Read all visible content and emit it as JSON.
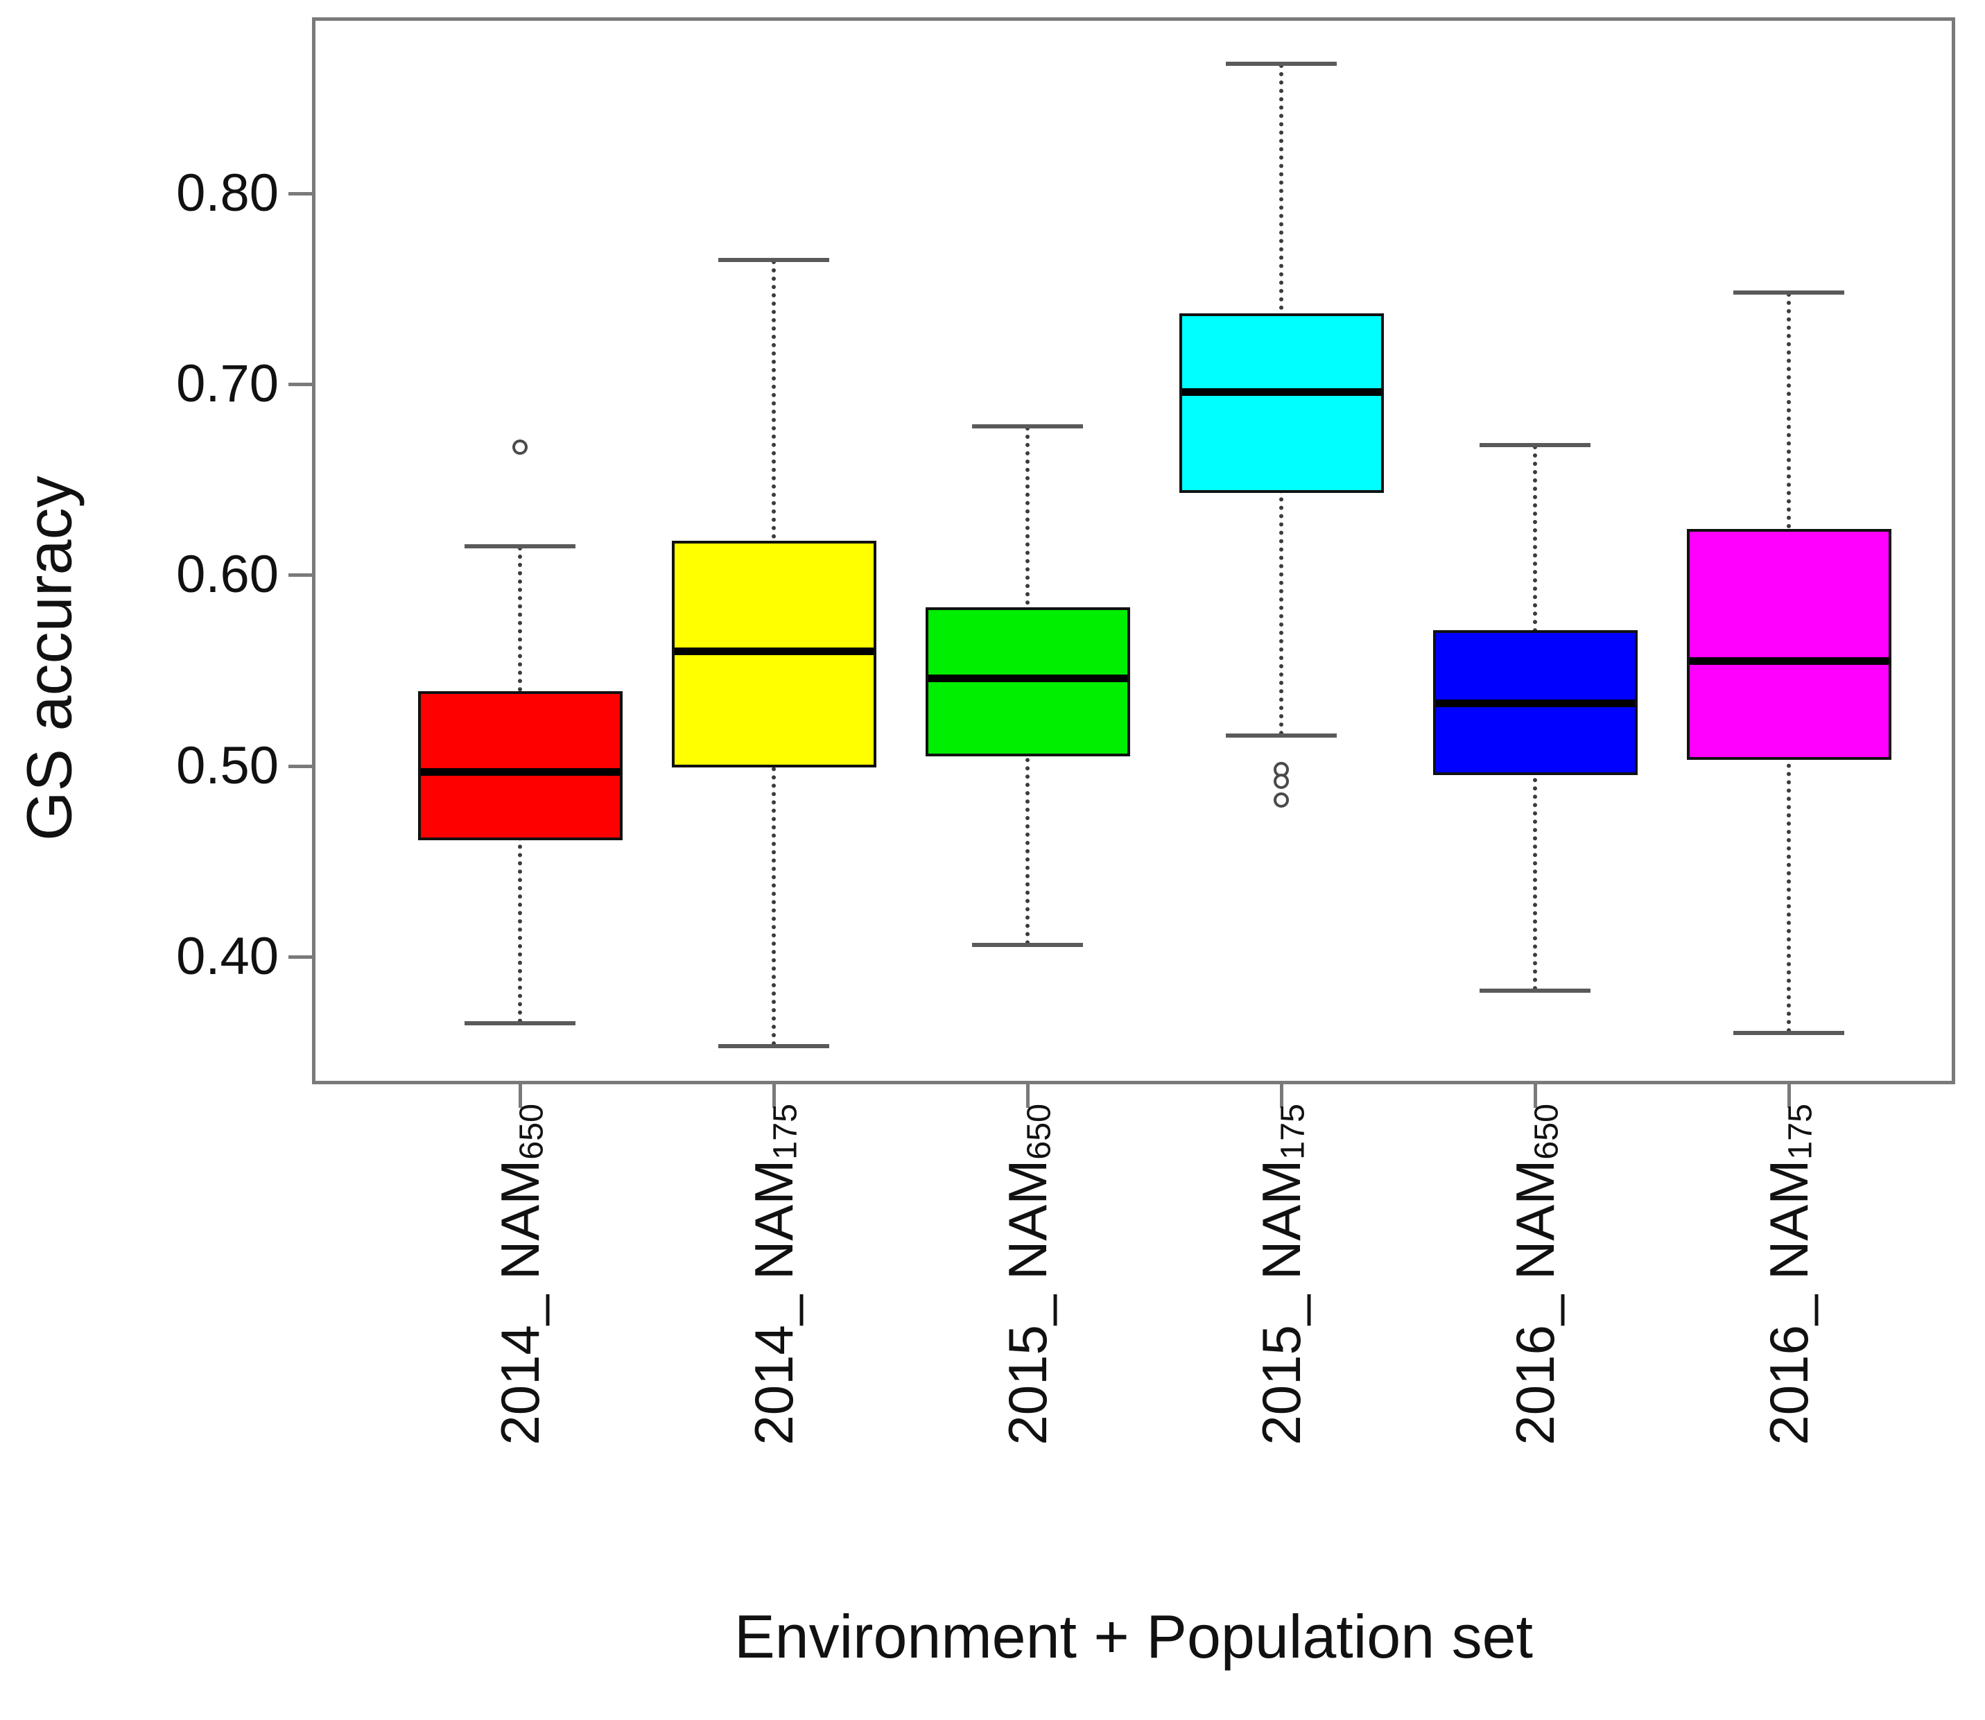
{
  "chart_data": {
    "type": "boxplot",
    "title": "",
    "xlabel": "Environment + Population set",
    "ylabel": "GS accuracy",
    "ylim": [
      0.333,
      0.892
    ],
    "yticks": [
      0.4,
      0.5,
      0.6,
      0.7,
      0.8
    ],
    "ytick_labels": [
      "0.40",
      "0.50",
      "0.60",
      "0.70",
      "0.80"
    ],
    "grid": false,
    "legend": "none",
    "categories": [
      {
        "main": "2014_ NAM",
        "sub": "650"
      },
      {
        "main": "2014_ NAM",
        "sub": "175"
      },
      {
        "main": "2015_ NAM",
        "sub": "650"
      },
      {
        "main": "2015_ NAM",
        "sub": "175"
      },
      {
        "main": "2016_ NAM",
        "sub": "650"
      },
      {
        "main": "2016_ NAM",
        "sub": "175"
      }
    ],
    "series": [
      {
        "label": "2014_NAM650",
        "color": "#ff0000",
        "whisker_low": 0.365,
        "q1": 0.461,
        "median": 0.497,
        "q3": 0.539,
        "whisker_high": 0.615,
        "outliers": [
          0.667
        ]
      },
      {
        "label": "2014_NAM175",
        "color": "#ffff00",
        "whisker_low": 0.353,
        "q1": 0.499,
        "median": 0.56,
        "q3": 0.618,
        "whisker_high": 0.765,
        "outliers": []
      },
      {
        "label": "2015_NAM650",
        "color": "#00ee00",
        "whisker_low": 0.406,
        "q1": 0.505,
        "median": 0.546,
        "q3": 0.583,
        "whisker_high": 0.678,
        "outliers": []
      },
      {
        "label": "2015_NAM175",
        "color": "#00ffff",
        "whisker_low": 0.516,
        "q1": 0.643,
        "median": 0.696,
        "q3": 0.737,
        "whisker_high": 0.868,
        "outliers": [
          0.498,
          0.492,
          0.482
        ]
      },
      {
        "label": "2016_NAM650",
        "color": "#0000ff",
        "whisker_low": 0.382,
        "q1": 0.495,
        "median": 0.533,
        "q3": 0.571,
        "whisker_high": 0.668,
        "outliers": []
      },
      {
        "label": "2016_NAM175",
        "color": "#ff00ff",
        "whisker_low": 0.36,
        "q1": 0.503,
        "median": 0.555,
        "q3": 0.624,
        "whisker_high": 0.748,
        "outliers": []
      }
    ]
  }
}
